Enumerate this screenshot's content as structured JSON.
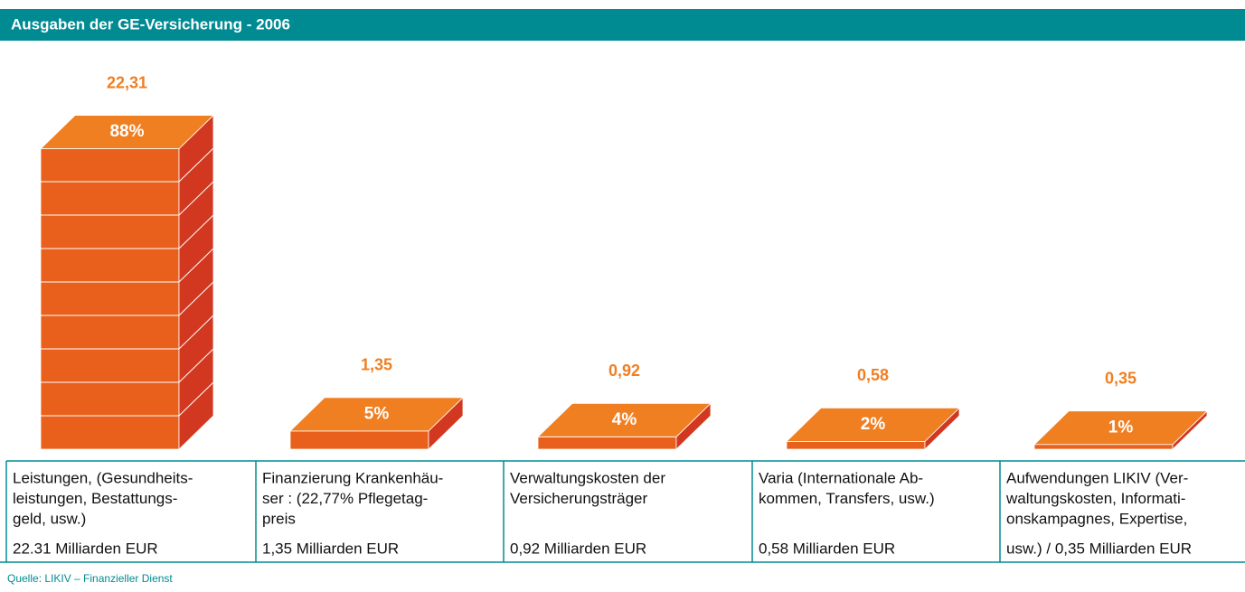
{
  "chart_data": {
    "type": "bar3d",
    "title": "Ausgaben der GE-Versicherung -  2006",
    "categories": [
      [
        "Leistungen, (Gesundheits-",
        "leistungen, Bestattungs-",
        "geld, usw.)",
        "22.31 Milliarden EUR"
      ],
      [
        "Finanzierung Krankenhäu-",
        "ser : (22,77% Pflegetag-",
        "preis",
        "1,35 Milliarden EUR"
      ],
      [
        "Verwaltungskosten der",
        "Versicherungsträger",
        "0,92 Milliarden EUR"
      ],
      [
        "Varia (Internationale Ab-",
        "kommen, Transfers, usw.)",
        "0,58 Milliarden EUR"
      ],
      [
        "Aufwendungen LIKIV (Ver-",
        "waltungskosten, Informati-",
        "onskampagnes, Expertise,",
        "usw.) / 0,35 Milliarden EUR"
      ]
    ],
    "values": [
      22.31,
      1.35,
      0.92,
      0.58,
      0.35
    ],
    "value_labels": [
      "22,31",
      "1,35",
      "0,92",
      "0,58",
      "0,35"
    ],
    "share_labels": [
      "88%",
      "5%",
      "4%",
      "2%",
      "1%"
    ],
    "colors": {
      "front": "#e8601c",
      "top": "#f07f22",
      "side": "#d2381f",
      "label": "#f07f22",
      "accent": "#008b93"
    },
    "source": "Quelle: LIKIV – Finanzieller Dienst"
  }
}
